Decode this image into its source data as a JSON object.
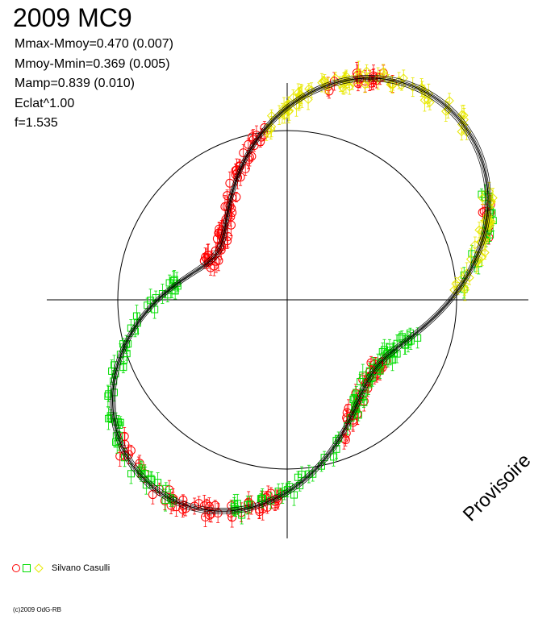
{
  "title": "2009 MC9",
  "stats": {
    "line1": "Mmax-Mmoy=0.470 (0.007)",
    "line2": "Mmoy-Mmin=0.369 (0.005)",
    "line3": "Mamp=0.839 (0.010)",
    "line4": "Eclat^1.00",
    "line5": "f=1.535"
  },
  "legend": {
    "observer": "Silvano Casulli"
  },
  "footer": "(c)2009 OdG-RB",
  "watermark": "Provisoire",
  "colors": {
    "red": "#ff0000",
    "green": "#00dd00",
    "yellow": "#ffff00",
    "curve": "#000000"
  },
  "chart_data": {
    "type": "scatter",
    "projection": "polar",
    "reference_circle_radius": 1.0,
    "axis_range": [
      -1.42,
      1.42
    ],
    "grid": false,
    "legend_position": "bottom-left",
    "model_curve": {
      "radius_mean": 1.0,
      "a1": 0.1,
      "phi1": 0.0,
      "a2": 0.42,
      "phi2": 0.95,
      "band_offsets": [
        -0.018,
        -0.008,
        0.0,
        0.008,
        0.018
      ]
    },
    "series": [
      {
        "color": "red",
        "marker": "circle",
        "phase_ranges": [
          [
            0.3,
            0.45
          ],
          [
            1.1,
            1.4
          ],
          [
            1.7,
            2.75
          ],
          [
            3.8,
            4.7
          ],
          [
            5.1,
            5.75
          ]
        ],
        "count": 180
      },
      {
        "color": "green",
        "marker": "square",
        "phase_ranges": [
          [
            0.05,
            0.5
          ],
          [
            2.95,
            4.2
          ],
          [
            4.45,
            6.05
          ]
        ],
        "count": 150
      },
      {
        "color": "yellow",
        "marker": "diamond",
        "phase_ranges": [
          [
            0.05,
            0.5
          ],
          [
            0.75,
            1.7
          ]
        ],
        "count": 110
      }
    ]
  }
}
